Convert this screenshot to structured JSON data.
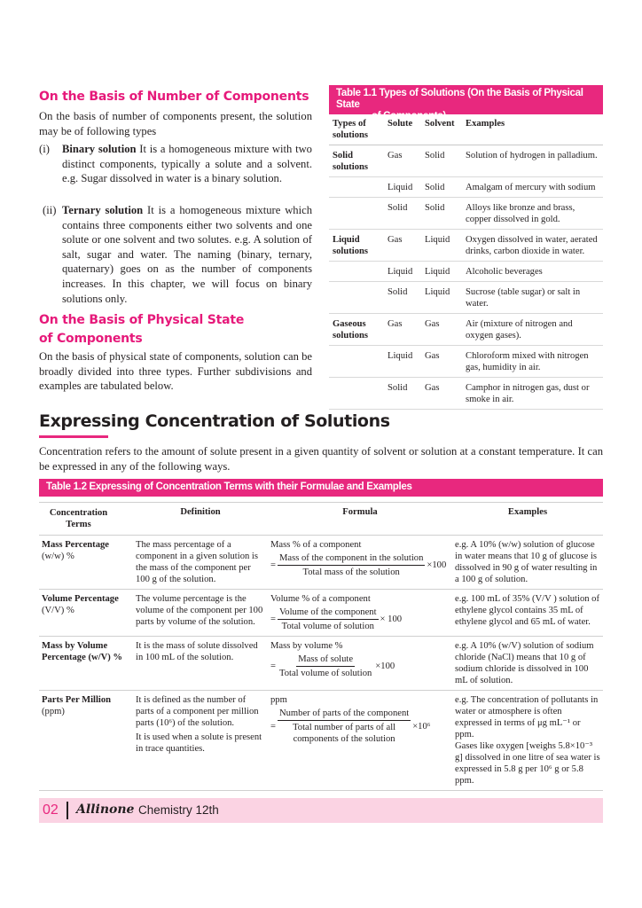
{
  "left": {
    "heading1": "On the Basis of Number of Components",
    "para1": "On the basis of number of components present, the solution may be of following types",
    "items": [
      {
        "num": "(i)",
        "term": "Binary solution",
        "text": " It is a homogeneous mixture with two distinct components, typically a solute and a solvent. e.g. Sugar dissolved in water is a binary solution."
      },
      {
        "num": "(ii)",
        "term": "Ternary solution",
        "text": " It is a homogeneous mixture which contains three components either two solvents and one solute or one solvent and two solutes. e.g. A solution of salt, sugar and water. The naming (binary, ternary, quaternary) goes on as the number of components increases. In this chapter, we will focus on binary solutions only."
      }
    ],
    "heading2_line1": "On the Basis of Physical State",
    "heading2_line2": "of Components",
    "para2": "On the basis of physical state of components, solution can be broadly divided into three types. Further subdivisions and examples are tabulated below."
  },
  "table1": {
    "title_line1": "Table 1.1 Types of Solutions (On the Basis of Physical State",
    "title_line2": "of Components)",
    "headers": [
      "Types of solutions",
      "Solute",
      "Solvent",
      "Examples"
    ],
    "rows": [
      [
        "Solid solutions",
        "Gas",
        "Solid",
        "Solution of hydrogen in palladium."
      ],
      [
        "",
        "Liquid",
        "Solid",
        "Amalgam of mercury with sodium"
      ],
      [
        "",
        "Solid",
        "Solid",
        "Alloys like bronze and brass, copper dissolved in gold."
      ],
      [
        "Liquid solutions",
        "Gas",
        "Liquid",
        "Oxygen dissolved in water, aerated drinks, carbon dioxide in water."
      ],
      [
        "",
        "Liquid",
        "Liquid",
        "Alcoholic beverages"
      ],
      [
        "",
        "Solid",
        "Liquid",
        "Sucrose (table sugar) or salt in water."
      ],
      [
        "Gaseous solutions",
        "Gas",
        "Gas",
        "Air (mixture of nitrogen and oxygen gases)."
      ],
      [
        "",
        "Liquid",
        "Gas",
        "Chloroform mixed with nitrogen gas, humidity in air."
      ],
      [
        "",
        "Solid",
        "Gas",
        "Camphor in nitrogen gas, dust or smoke in air."
      ]
    ]
  },
  "section": {
    "title": "Expressing Concentration of Solutions",
    "intro": "Concentration refers to the amount of solute present in a given quantity of solvent or solution at a constant temperature. It can be expressed in any of the following ways."
  },
  "table2": {
    "title": "Table 1.2 Expressing of Concentration Terms with their Formulae and Examples",
    "headers": [
      "Concentration Terms",
      "Definition",
      "Formula",
      "Examples"
    ],
    "rows": [
      {
        "term": "Mass Percentage",
        "unit": "(w/w) %",
        "definition": [
          "The mass percentage of a component in a given solution is the mass of the component per 100 g of the solution."
        ],
        "formula_label": "Mass % of a component",
        "numerator": "Mass of the component in the solution",
        "denominator": "Total mass of the solution",
        "multiplier": "×100",
        "examples": [
          "e.g.  A 10% (w/w) solution of glucose in water means that 10 g of glucose is dissolved in 90 g of water resulting in a 100 g of solution."
        ]
      },
      {
        "term": "Volume Percentage",
        "unit": "(V/V) %",
        "definition": [
          "The volume percentage is the volume of the component per 100 parts by volume of the solution."
        ],
        "formula_label": "Volume % of a component",
        "numerator": "Volume of the component",
        "denominator": "Total volume of solution",
        "multiplier": "× 100",
        "examples": [
          "e.g. 100 mL of 35% (V/V ) solution of ethylene glycol contains 35 mL of ethylene glycol and 65 mL of water."
        ]
      },
      {
        "term": "Mass by Volume",
        "unit": "Percentage (w/V) %",
        "definition": [
          "It is the mass of solute dissolved in 100 mL of the solution."
        ],
        "formula_label": "Mass by volume %",
        "numerator": "Mass of solute",
        "denominator": "Total volume of solution",
        "multiplier": "×100",
        "examples": [
          "e.g.  A 10% (w/V) solution of sodium chloride (NaCl) means that 10 g of sodium chloride is dissolved in 100 mL of solution."
        ]
      },
      {
        "term": "Parts Per Million",
        "unit": "(ppm)",
        "definition": [
          "It is defined as the number of parts of a component per million parts (10⁶) of the solution.",
          "It is used when a solute is present in trace quantities."
        ],
        "formula_label": "ppm",
        "numerator": "Number of parts of the component",
        "denominator": "Total number of parts  of all components of the solution",
        "multiplier": "×10⁶",
        "examples": [
          "e.g. The concentration of pollutants in water or atmosphere is often expressed in terms of μg mL⁻¹ or ppm.",
          "Gases like oxygen [weighs 5.8×10⁻³ g] dissolved in one litre of sea water is expressed in 5.8 g per 10⁶ g or 5.8 ppm."
        ]
      }
    ]
  },
  "footer": {
    "page": "02",
    "brand": "Allinone",
    "book": "Chemistry 12th",
    "accent": "#e8287e"
  }
}
